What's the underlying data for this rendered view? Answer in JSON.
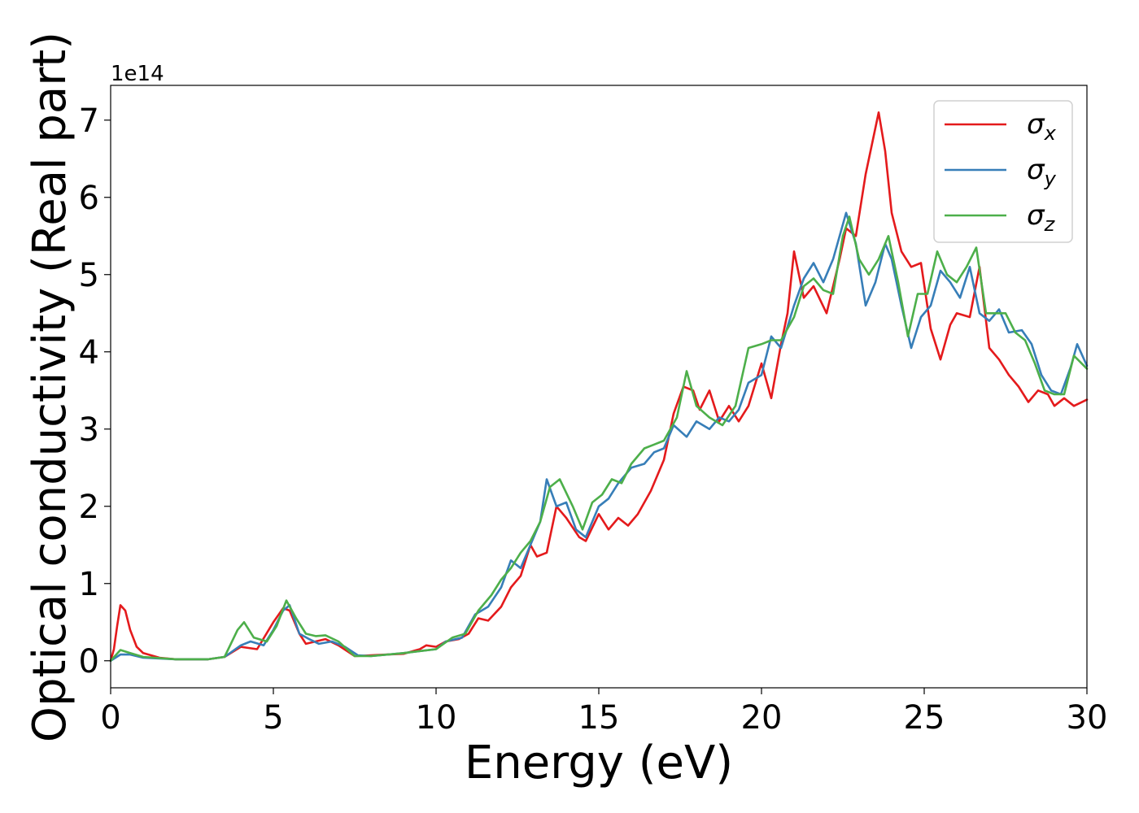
{
  "chart_data": {
    "type": "line",
    "title": "",
    "xlabel": "Energy (eV)",
    "ylabel": "Optical conductivity (Real part)",
    "y_offset_label": "1e14",
    "xlim": [
      0,
      30
    ],
    "ylim": [
      -0.35,
      7.45
    ],
    "xticks": [
      0,
      5,
      10,
      15,
      20,
      25,
      30
    ],
    "yticks": [
      0,
      1,
      2,
      3,
      4,
      5,
      6,
      7
    ],
    "xtick_labels": [
      "0",
      "5",
      "10",
      "15",
      "20",
      "25",
      "30"
    ],
    "ytick_labels": [
      "0",
      "1",
      "2",
      "3",
      "4",
      "5",
      "6",
      "7"
    ],
    "grid": false,
    "legend_position": "top-right",
    "series": [
      {
        "symbol": "σ",
        "subscript": "x",
        "color": "#e41a1c",
        "points": [
          [
            0,
            0
          ],
          [
            0.1,
            0.15
          ],
          [
            0.2,
            0.45
          ],
          [
            0.3,
            0.72
          ],
          [
            0.45,
            0.65
          ],
          [
            0.6,
            0.4
          ],
          [
            0.8,
            0.18
          ],
          [
            1,
            0.1
          ],
          [
            1.5,
            0.04
          ],
          [
            2,
            0.02
          ],
          [
            3,
            0.02
          ],
          [
            3.5,
            0.05
          ],
          [
            4,
            0.18
          ],
          [
            4.5,
            0.15
          ],
          [
            5,
            0.5
          ],
          [
            5.3,
            0.68
          ],
          [
            5.5,
            0.65
          ],
          [
            5.8,
            0.35
          ],
          [
            6,
            0.22
          ],
          [
            6.3,
            0.25
          ],
          [
            6.6,
            0.28
          ],
          [
            7,
            0.2
          ],
          [
            7.5,
            0.06
          ],
          [
            8,
            0.07
          ],
          [
            8.5,
            0.08
          ],
          [
            9,
            0.09
          ],
          [
            9.5,
            0.15
          ],
          [
            9.7,
            0.2
          ],
          [
            10,
            0.18
          ],
          [
            10.3,
            0.25
          ],
          [
            10.7,
            0.28
          ],
          [
            11,
            0.35
          ],
          [
            11.3,
            0.55
          ],
          [
            11.6,
            0.52
          ],
          [
            12,
            0.7
          ],
          [
            12.3,
            0.95
          ],
          [
            12.6,
            1.1
          ],
          [
            12.9,
            1.5
          ],
          [
            13.1,
            1.35
          ],
          [
            13.4,
            1.4
          ],
          [
            13.7,
            2.0
          ],
          [
            14,
            1.85
          ],
          [
            14.4,
            1.6
          ],
          [
            14.6,
            1.55
          ],
          [
            15,
            1.9
          ],
          [
            15.3,
            1.7
          ],
          [
            15.6,
            1.85
          ],
          [
            15.9,
            1.75
          ],
          [
            16.2,
            1.9
          ],
          [
            16.6,
            2.2
          ],
          [
            17,
            2.6
          ],
          [
            17.3,
            3.2
          ],
          [
            17.6,
            3.55
          ],
          [
            17.9,
            3.5
          ],
          [
            18.1,
            3.25
          ],
          [
            18.4,
            3.5
          ],
          [
            18.7,
            3.1
          ],
          [
            19,
            3.3
          ],
          [
            19.3,
            3.1
          ],
          [
            19.6,
            3.3
          ],
          [
            20,
            3.85
          ],
          [
            20.3,
            3.4
          ],
          [
            20.6,
            4.1
          ],
          [
            20.8,
            4.5
          ],
          [
            21,
            5.3
          ],
          [
            21.3,
            4.7
          ],
          [
            21.6,
            4.85
          ],
          [
            22,
            4.5
          ],
          [
            22.4,
            5.2
          ],
          [
            22.6,
            5.6
          ],
          [
            22.9,
            5.5
          ],
          [
            23.2,
            6.3
          ],
          [
            23.4,
            6.7
          ],
          [
            23.6,
            7.1
          ],
          [
            23.8,
            6.6
          ],
          [
            24,
            5.8
          ],
          [
            24.3,
            5.3
          ],
          [
            24.6,
            5.1
          ],
          [
            24.9,
            5.15
          ],
          [
            25.2,
            4.3
          ],
          [
            25.5,
            3.9
          ],
          [
            25.8,
            4.35
          ],
          [
            26,
            4.5
          ],
          [
            26.4,
            4.45
          ],
          [
            26.7,
            5.1
          ],
          [
            27,
            4.05
          ],
          [
            27.3,
            3.9
          ],
          [
            27.6,
            3.7
          ],
          [
            27.9,
            3.55
          ],
          [
            28.2,
            3.35
          ],
          [
            28.5,
            3.5
          ],
          [
            28.8,
            3.45
          ],
          [
            29,
            3.3
          ],
          [
            29.3,
            3.4
          ],
          [
            29.6,
            3.3
          ],
          [
            30,
            3.38
          ]
        ]
      },
      {
        "symbol": "σ",
        "subscript": "y",
        "color": "#377eb8",
        "points": [
          [
            0,
            0
          ],
          [
            0.3,
            0.08
          ],
          [
            0.6,
            0.08
          ],
          [
            1,
            0.04
          ],
          [
            2,
            0.02
          ],
          [
            3,
            0.02
          ],
          [
            3.5,
            0.05
          ],
          [
            4,
            0.2
          ],
          [
            4.3,
            0.25
          ],
          [
            4.7,
            0.2
          ],
          [
            5,
            0.4
          ],
          [
            5.3,
            0.65
          ],
          [
            5.5,
            0.72
          ],
          [
            5.8,
            0.35
          ],
          [
            6.1,
            0.28
          ],
          [
            6.4,
            0.22
          ],
          [
            6.8,
            0.25
          ],
          [
            7.2,
            0.18
          ],
          [
            7.6,
            0.07
          ],
          [
            8,
            0.06
          ],
          [
            9,
            0.1
          ],
          [
            10,
            0.15
          ],
          [
            10.3,
            0.25
          ],
          [
            10.8,
            0.3
          ],
          [
            11.2,
            0.6
          ],
          [
            11.6,
            0.7
          ],
          [
            12,
            0.95
          ],
          [
            12.3,
            1.3
          ],
          [
            12.6,
            1.2
          ],
          [
            12.9,
            1.5
          ],
          [
            13.2,
            1.8
          ],
          [
            13.4,
            2.35
          ],
          [
            13.7,
            2.0
          ],
          [
            14,
            2.05
          ],
          [
            14.3,
            1.7
          ],
          [
            14.6,
            1.6
          ],
          [
            15,
            2.0
          ],
          [
            15.3,
            2.1
          ],
          [
            15.6,
            2.3
          ],
          [
            16,
            2.5
          ],
          [
            16.4,
            2.55
          ],
          [
            16.7,
            2.7
          ],
          [
            17,
            2.75
          ],
          [
            17.3,
            3.05
          ],
          [
            17.7,
            2.9
          ],
          [
            18,
            3.1
          ],
          [
            18.4,
            3.0
          ],
          [
            18.7,
            3.15
          ],
          [
            19,
            3.1
          ],
          [
            19.3,
            3.25
          ],
          [
            19.6,
            3.6
          ],
          [
            20,
            3.7
          ],
          [
            20.3,
            4.2
          ],
          [
            20.6,
            4.05
          ],
          [
            21,
            4.6
          ],
          [
            21.3,
            4.95
          ],
          [
            21.6,
            5.15
          ],
          [
            21.9,
            4.9
          ],
          [
            22.2,
            5.2
          ],
          [
            22.6,
            5.8
          ],
          [
            22.9,
            5.4
          ],
          [
            23.2,
            4.6
          ],
          [
            23.5,
            4.9
          ],
          [
            23.8,
            5.4
          ],
          [
            24,
            5.2
          ],
          [
            24.3,
            4.6
          ],
          [
            24.6,
            4.05
          ],
          [
            24.9,
            4.45
          ],
          [
            25.2,
            4.6
          ],
          [
            25.5,
            5.05
          ],
          [
            25.8,
            4.9
          ],
          [
            26.1,
            4.7
          ],
          [
            26.4,
            5.1
          ],
          [
            26.7,
            4.5
          ],
          [
            27,
            4.4
          ],
          [
            27.3,
            4.55
          ],
          [
            27.6,
            4.25
          ],
          [
            28,
            4.28
          ],
          [
            28.3,
            4.1
          ],
          [
            28.6,
            3.7
          ],
          [
            28.9,
            3.5
          ],
          [
            29.2,
            3.45
          ],
          [
            29.5,
            3.8
          ],
          [
            29.7,
            4.1
          ],
          [
            30,
            3.82
          ]
        ]
      },
      {
        "symbol": "σ",
        "subscript": "z",
        "color": "#4daf4a",
        "points": [
          [
            0,
            0
          ],
          [
            0.3,
            0.14
          ],
          [
            0.6,
            0.1
          ],
          [
            1,
            0.05
          ],
          [
            2,
            0.02
          ],
          [
            3,
            0.02
          ],
          [
            3.5,
            0.05
          ],
          [
            3.9,
            0.4
          ],
          [
            4.1,
            0.5
          ],
          [
            4.4,
            0.3
          ],
          [
            4.8,
            0.25
          ],
          [
            5.1,
            0.45
          ],
          [
            5.4,
            0.78
          ],
          [
            5.7,
            0.55
          ],
          [
            6,
            0.35
          ],
          [
            6.3,
            0.32
          ],
          [
            6.6,
            0.33
          ],
          [
            7,
            0.25
          ],
          [
            7.5,
            0.06
          ],
          [
            8,
            0.06
          ],
          [
            9,
            0.1
          ],
          [
            10,
            0.15
          ],
          [
            10.5,
            0.3
          ],
          [
            10.9,
            0.35
          ],
          [
            11.3,
            0.65
          ],
          [
            11.7,
            0.85
          ],
          [
            12,
            1.05
          ],
          [
            12.3,
            1.2
          ],
          [
            12.6,
            1.4
          ],
          [
            12.9,
            1.55
          ],
          [
            13.2,
            1.8
          ],
          [
            13.5,
            2.25
          ],
          [
            13.8,
            2.35
          ],
          [
            14.2,
            2.0
          ],
          [
            14.5,
            1.7
          ],
          [
            14.8,
            2.05
          ],
          [
            15.1,
            2.15
          ],
          [
            15.4,
            2.35
          ],
          [
            15.7,
            2.3
          ],
          [
            16,
            2.55
          ],
          [
            16.4,
            2.75
          ],
          [
            16.7,
            2.8
          ],
          [
            17,
            2.85
          ],
          [
            17.4,
            3.15
          ],
          [
            17.7,
            3.75
          ],
          [
            18,
            3.3
          ],
          [
            18.4,
            3.15
          ],
          [
            18.8,
            3.05
          ],
          [
            19.2,
            3.3
          ],
          [
            19.6,
            4.05
          ],
          [
            20,
            4.1
          ],
          [
            20.3,
            4.15
          ],
          [
            20.6,
            4.15
          ],
          [
            21,
            4.45
          ],
          [
            21.3,
            4.85
          ],
          [
            21.6,
            4.95
          ],
          [
            21.9,
            4.8
          ],
          [
            22.2,
            4.75
          ],
          [
            22.5,
            5.5
          ],
          [
            22.7,
            5.75
          ],
          [
            23,
            5.2
          ],
          [
            23.3,
            5.0
          ],
          [
            23.6,
            5.2
          ],
          [
            23.9,
            5.5
          ],
          [
            24.2,
            4.9
          ],
          [
            24.5,
            4.2
          ],
          [
            24.8,
            4.75
          ],
          [
            25.1,
            4.75
          ],
          [
            25.4,
            5.3
          ],
          [
            25.7,
            5.0
          ],
          [
            26,
            4.9
          ],
          [
            26.3,
            5.1
          ],
          [
            26.6,
            5.35
          ],
          [
            26.9,
            4.5
          ],
          [
            27.2,
            4.5
          ],
          [
            27.5,
            4.5
          ],
          [
            27.8,
            4.25
          ],
          [
            28.1,
            4.15
          ],
          [
            28.4,
            3.85
          ],
          [
            28.7,
            3.5
          ],
          [
            29,
            3.45
          ],
          [
            29.3,
            3.45
          ],
          [
            29.6,
            3.95
          ],
          [
            30,
            3.78
          ]
        ]
      }
    ]
  }
}
